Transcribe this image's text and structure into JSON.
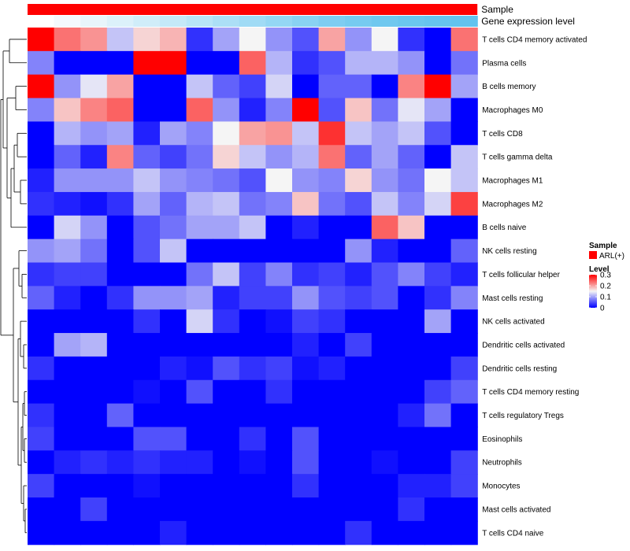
{
  "chart_data": {
    "type": "heatmap",
    "annotations": {
      "sample_label": "Sample",
      "gene_label": "Gene expression level",
      "sample_color": "#ff0000",
      "gene_colors": [
        "#ffffff",
        "#f4f9fd",
        "#e8f5fb",
        "#dcf1fa",
        "#d0edf9",
        "#c4e9f8",
        "#b8e5f7",
        "#acdff6",
        "#a0dbf5",
        "#94d7f4",
        "#89d2f2",
        "#7ecdf1",
        "#76cbf0",
        "#6fc8ef",
        "#6ac6ee",
        "#66c4ee",
        "#63c3ee"
      ]
    },
    "legend": {
      "sample_title": "Sample",
      "sample_item": "ARL(+)",
      "level_title": "Level",
      "ticks": [
        0.3,
        0.2,
        0.1,
        0
      ],
      "tick_labels": [
        "0.3",
        "0.2",
        "0.1",
        "0"
      ],
      "range": [
        0,
        0.3
      ]
    },
    "rows": [
      "T cells CD4 memory activated",
      "Plasma cells",
      "B cells memory",
      "Macrophages M0",
      "T cells CD8",
      "T cells gamma delta",
      "Macrophages M1",
      "Macrophages M2",
      "B cells naive",
      "NK cells resting",
      "T cells follicular helper",
      "Mast cells resting",
      "NK cells activated",
      "Dendritic cells activated",
      "Dendritic cells resting",
      "T cells CD4 memory resting",
      "T cells regulatory  Tregs",
      "Eosinophils",
      "Neutrophils",
      "Monocytes",
      "Mast cells activated",
      "T cells CD4 naive"
    ],
    "values": [
      [
        0.3,
        0.23,
        0.21,
        0.12,
        0.17,
        0.19,
        0.03,
        0.1,
        0.15,
        0.09,
        0.05,
        0.2,
        0.09,
        0.15,
        0.03,
        0.0,
        0.23
      ],
      [
        0.08,
        0.0,
        0.0,
        0.0,
        0.3,
        0.3,
        0.0,
        0.0,
        0.24,
        0.11,
        0.03,
        0.05,
        0.11,
        0.11,
        0.09,
        0.0,
        0.07
      ],
      [
        0.3,
        0.09,
        0.14,
        0.2,
        0.0,
        0.0,
        0.12,
        0.06,
        0.04,
        0.13,
        0.0,
        0.06,
        0.06,
        0.0,
        0.22,
        0.3,
        0.1
      ],
      [
        0.08,
        0.18,
        0.22,
        0.24,
        0.0,
        0.0,
        0.24,
        0.09,
        0.02,
        0.08,
        0.3,
        0.05,
        0.18,
        0.07,
        0.14,
        0.1,
        0.0
      ],
      [
        0.0,
        0.11,
        0.09,
        0.1,
        0.02,
        0.1,
        0.08,
        0.15,
        0.2,
        0.21,
        0.12,
        0.27,
        0.12,
        0.1,
        0.12,
        0.05,
        0.0
      ],
      [
        0.0,
        0.06,
        0.02,
        0.22,
        0.06,
        0.04,
        0.07,
        0.17,
        0.12,
        0.09,
        0.11,
        0.23,
        0.06,
        0.1,
        0.06,
        0.0,
        0.12
      ],
      [
        0.02,
        0.09,
        0.09,
        0.09,
        0.12,
        0.09,
        0.08,
        0.07,
        0.05,
        0.15,
        0.09,
        0.08,
        0.17,
        0.09,
        0.07,
        0.15,
        0.12
      ],
      [
        0.03,
        0.02,
        0.01,
        0.03,
        0.1,
        0.06,
        0.11,
        0.12,
        0.07,
        0.08,
        0.18,
        0.07,
        0.05,
        0.12,
        0.08,
        0.13,
        0.26
      ],
      [
        0.0,
        0.13,
        0.09,
        0.0,
        0.05,
        0.07,
        0.1,
        0.1,
        0.12,
        0.0,
        0.02,
        0.0,
        0.0,
        0.24,
        0.18,
        0.0,
        0.0
      ],
      [
        0.09,
        0.1,
        0.07,
        0.0,
        0.05,
        0.12,
        0.0,
        0.0,
        0.0,
        0.0,
        0.0,
        0.0,
        0.09,
        0.02,
        0.0,
        0.0,
        0.06
      ],
      [
        0.03,
        0.04,
        0.04,
        0.0,
        0.0,
        0.0,
        0.07,
        0.12,
        0.04,
        0.08,
        0.03,
        0.04,
        0.02,
        0.05,
        0.08,
        0.04,
        0.02
      ],
      [
        0.06,
        0.02,
        0.0,
        0.03,
        0.09,
        0.09,
        0.1,
        0.02,
        0.04,
        0.04,
        0.09,
        0.05,
        0.04,
        0.05,
        0.0,
        0.03,
        0.08
      ],
      [
        0.0,
        0.0,
        0.0,
        0.0,
        0.03,
        0.0,
        0.13,
        0.03,
        0.0,
        0.01,
        0.04,
        0.03,
        0.0,
        0.0,
        0.0,
        0.1,
        0.0
      ],
      [
        0.0,
        0.1,
        0.11,
        0.0,
        0.0,
        0.0,
        0.0,
        0.0,
        0.0,
        0.0,
        0.02,
        0.0,
        0.04,
        0.0,
        0.0,
        0.0,
        0.0
      ],
      [
        0.03,
        0.0,
        0.0,
        0.0,
        0.0,
        0.02,
        0.01,
        0.05,
        0.03,
        0.04,
        0.01,
        0.02,
        0.0,
        0.0,
        0.0,
        0.0,
        0.04
      ],
      [
        0.0,
        0.0,
        0.0,
        0.0,
        0.01,
        0.0,
        0.05,
        0.0,
        0.0,
        0.03,
        0.0,
        0.0,
        0.0,
        0.0,
        0.0,
        0.04,
        0.06
      ],
      [
        0.03,
        0.0,
        0.0,
        0.06,
        0.0,
        0.0,
        0.0,
        0.0,
        0.0,
        0.0,
        0.0,
        0.0,
        0.0,
        0.0,
        0.02,
        0.07,
        0.0
      ],
      [
        0.04,
        0.0,
        0.0,
        0.0,
        0.05,
        0.05,
        0.0,
        0.0,
        0.03,
        0.0,
        0.05,
        0.0,
        0.0,
        0.0,
        0.0,
        0.0,
        0.0
      ],
      [
        0.0,
        0.02,
        0.03,
        0.02,
        0.03,
        0.02,
        0.02,
        0.0,
        0.01,
        0.0,
        0.05,
        0.0,
        0.0,
        0.01,
        0.0,
        0.0,
        0.04
      ],
      [
        0.04,
        0.0,
        0.0,
        0.0,
        0.01,
        0.0,
        0.0,
        0.0,
        0.0,
        0.0,
        0.03,
        0.0,
        0.0,
        0.0,
        0.02,
        0.02,
        0.04
      ],
      [
        0.0,
        0.0,
        0.04,
        0.0,
        0.0,
        0.0,
        0.0,
        0.0,
        0.0,
        0.0,
        0.0,
        0.0,
        0.0,
        0.0,
        0.03,
        0.0,
        0.0
      ],
      [
        0.0,
        0.0,
        0.0,
        0.0,
        0.0,
        0.02,
        0.0,
        0.0,
        0.0,
        0.0,
        0.0,
        0.0,
        0.03,
        0.0,
        0.0,
        0.0,
        0.0
      ]
    ],
    "color_scale": {
      "low": "#0000ff",
      "mid": "#f5f5f5",
      "high": "#ff0000",
      "mid_value": 0.15
    },
    "row_dendrogram": true
  }
}
